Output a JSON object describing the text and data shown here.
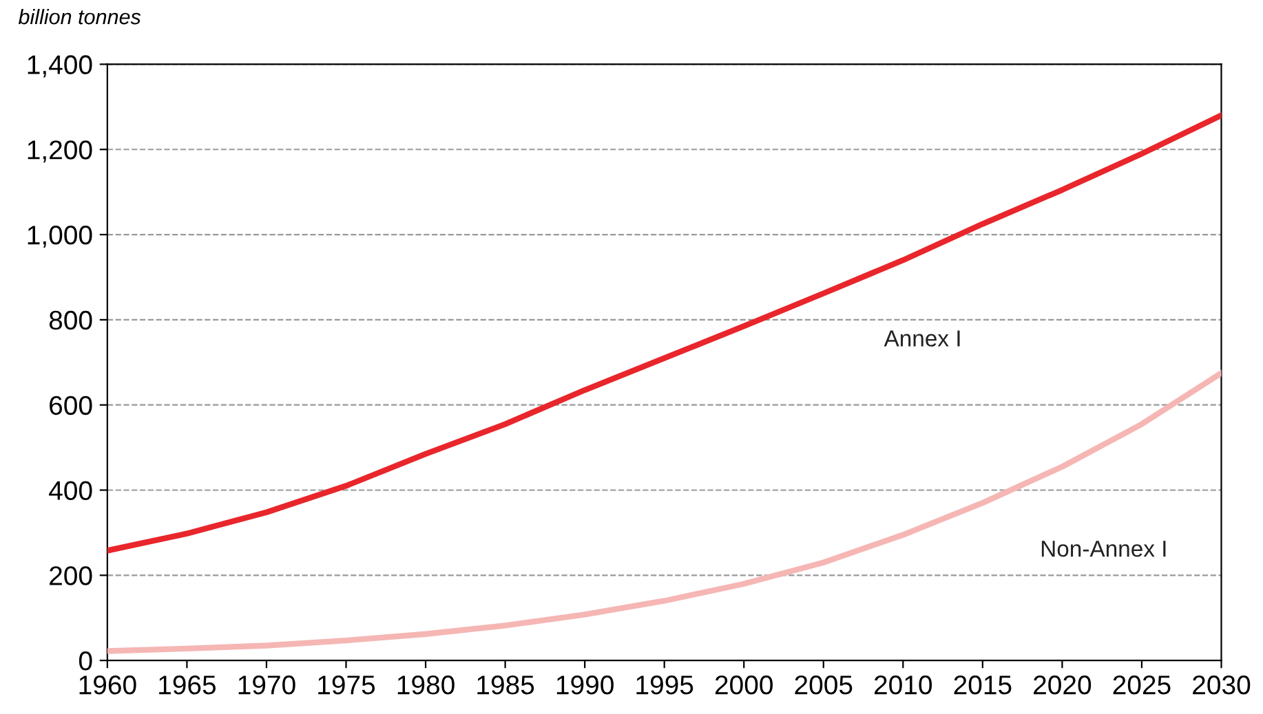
{
  "chart_data": {
    "type": "line",
    "ylabel": "billion tonnes",
    "x": [
      1960,
      1965,
      1970,
      1975,
      1980,
      1985,
      1990,
      1995,
      2000,
      2005,
      2010,
      2015,
      2020,
      2025,
      2030
    ],
    "series": [
      {
        "name": "Annex I",
        "color": "#e8262b",
        "values": [
          258,
          298,
          348,
          410,
          485,
          555,
          635,
          710,
          785,
          862,
          940,
          1025,
          1105,
          1190,
          1280
        ]
      },
      {
        "name": "Non-Annex I",
        "color": "#f5b6b4",
        "values": [
          22,
          28,
          35,
          47,
          62,
          82,
          108,
          140,
          180,
          230,
          295,
          370,
          455,
          555,
          675
        ]
      }
    ],
    "xlim": [
      1960,
      2030
    ],
    "xticks": [
      1960,
      1965,
      1970,
      1975,
      1980,
      1985,
      1990,
      1995,
      2000,
      2005,
      2010,
      2015,
      2020,
      2025,
      2030
    ],
    "ylim": [
      0,
      1400
    ],
    "yticks": [
      {
        "value": 0,
        "label": "0"
      },
      {
        "value": 200,
        "label": "200"
      },
      {
        "value": 400,
        "label": "400"
      },
      {
        "value": 600,
        "label": "600"
      },
      {
        "value": 800,
        "label": "800"
      },
      {
        "value": 1000,
        "label": "1,000"
      },
      {
        "value": 1200,
        "label": "1,200"
      },
      {
        "value": 1400,
        "label": "1,400"
      }
    ],
    "grid": "y",
    "legend": false,
    "marker": "none",
    "line_style": "solid"
  }
}
